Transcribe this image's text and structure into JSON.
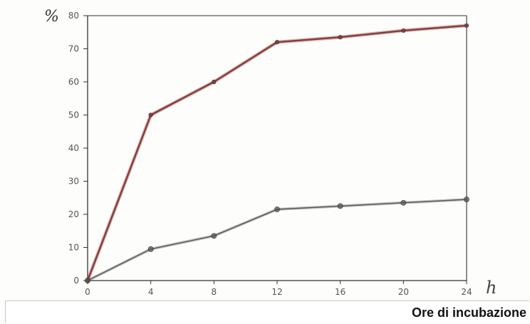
{
  "chart_data": {
    "type": "line",
    "title": "",
    "ylabel": "%",
    "xlabel": "Ore di incubazione",
    "x_unit_mark": "h",
    "x_ticks": [
      "0",
      "4",
      "8",
      "12",
      "16",
      "20",
      "24"
    ],
    "y_ticks": [
      "0",
      "10",
      "20",
      "30",
      "40",
      "50",
      "60",
      "70",
      "80"
    ],
    "xlim": [
      0,
      24
    ],
    "ylim": [
      0,
      80
    ],
    "grid": false,
    "x": [
      0,
      4,
      8,
      12,
      16,
      20,
      24
    ],
    "series": [
      {
        "values": [
          0,
          50,
          60,
          72,
          73.5,
          75.5,
          77
        ],
        "color": "#8a3a3a"
      },
      {
        "values": [
          0,
          9.5,
          13.5,
          21.5,
          22.5,
          23.5,
          24.5
        ],
        "color": "#555555"
      }
    ]
  }
}
